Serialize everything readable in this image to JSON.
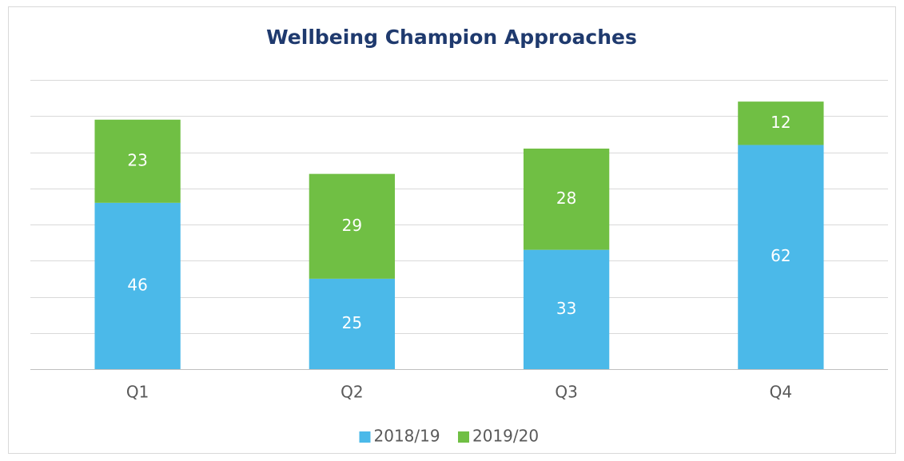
{
  "chart_data": {
    "type": "stacked_bar",
    "title": "Wellbeing Champion Approaches",
    "categories": [
      "Q1",
      "Q2",
      "Q3",
      "Q4"
    ],
    "series": [
      {
        "name": "2018/19",
        "color": "#4bb9e9",
        "values": [
          46,
          25,
          33,
          62
        ]
      },
      {
        "name": "2019/20",
        "color": "#70bf44",
        "values": [
          23,
          29,
          28,
          12
        ]
      }
    ],
    "ylim": [
      0,
      80
    ],
    "yticks": [
      0,
      10,
      20,
      30,
      40,
      50,
      60,
      70,
      80
    ],
    "grid": true,
    "tick_labels": false,
    "legend": "bottom"
  }
}
